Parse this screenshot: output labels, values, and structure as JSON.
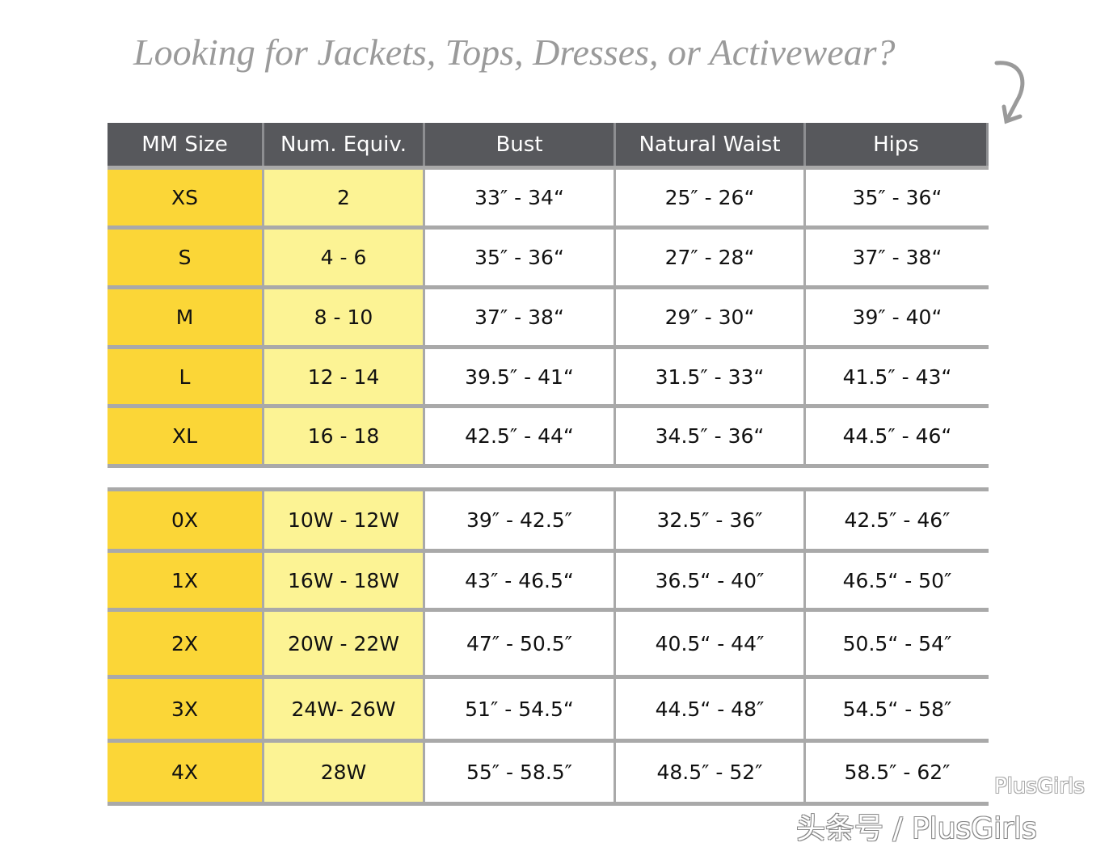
{
  "title": "Looking for Jackets, Tops, Dresses, or Activewear?",
  "headers": [
    "MM Size",
    "Num. Equiv.",
    "Bust",
    "Natural Waist",
    "Hips"
  ],
  "colors": {
    "header_bg": "#57585c",
    "size_col": "#fbd637",
    "num_col": "#fcf394",
    "grid": "#a9a9a9"
  },
  "groups": [
    [
      [
        "XS",
        "2",
        "33″ - 34“",
        "25″ - 26“",
        "35″ - 36“"
      ],
      [
        "S",
        "4 - 6",
        "35″ - 36“",
        "27″ - 28“",
        "37″ - 38“"
      ],
      [
        "M",
        "8 - 10",
        "37″ - 38“",
        "29″ - 30“",
        "39″ - 40“"
      ],
      [
        "L",
        "12 - 14",
        "39.5″ - 41“",
        "31.5″ - 33“",
        "41.5″ - 43“"
      ],
      [
        "XL",
        "16 - 18",
        "42.5″ - 44“",
        "34.5″ - 36“",
        "44.5″ - 46“"
      ]
    ],
    [
      [
        "0X",
        "10W - 12W",
        "39″ - 42.5″",
        "32.5″ - 36″",
        "42.5″ - 46″"
      ],
      [
        "1X",
        "16W - 18W",
        "43″ - 46.5“",
        "36.5“ - 40″",
        "46.5“ - 50″"
      ],
      [
        "2X",
        "20W - 22W",
        "47″ - 50.5″",
        "40.5“ - 44″",
        "50.5“ - 54″"
      ],
      [
        "3X",
        "24W- 26W",
        "51″ - 54.5“",
        "44.5“ - 48″",
        "54.5“ - 58″"
      ],
      [
        "4X",
        "28W",
        "55″ - 58.5″",
        "48.5″ - 52″",
        "58.5″ - 62″"
      ]
    ]
  ],
  "watermark": {
    "top": "PlusGirls",
    "bottom": "头条号 / PlusGirls",
    "icon": "wechat-icon"
  }
}
